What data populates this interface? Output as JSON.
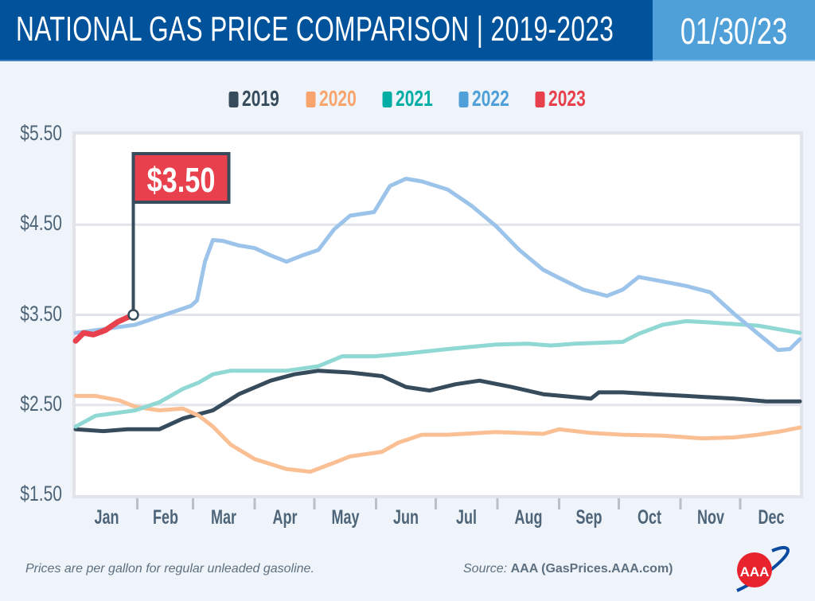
{
  "header": {
    "title": "NATIONAL GAS PRICE COMPARISON | 2019-2023",
    "date": "01/30/23"
  },
  "colors": {
    "header_bg": "#00529b",
    "date_bg": "#4f9fd8",
    "2019": "#364b5c",
    "2020": "#f9a46d",
    "2021": "#00ada4",
    "2022": "#4f9fd8",
    "2023": "#e8404c"
  },
  "footer": {
    "note": "Prices are per gallon for regular unleaded gasoline.",
    "source_label": "Source:",
    "source_value": "AAA (GasPrices.AAA.com)"
  },
  "logo": {
    "text": "AAA"
  },
  "chart_data": {
    "type": "line",
    "ylim": [
      1.5,
      5.5
    ],
    "yticks": [
      "$1.50",
      "$2.50",
      "$3.50",
      "$4.50",
      "$5.50"
    ],
    "ytick_values": [
      1.5,
      2.5,
      3.5,
      4.5,
      5.5
    ],
    "categories": [
      "Jan",
      "Feb",
      "Mar",
      "Apr",
      "May",
      "Jun",
      "Jul",
      "Aug",
      "Sep",
      "Oct",
      "Nov",
      "Dec"
    ],
    "grid": true,
    "legend": "top-center",
    "annotation": {
      "label": "$3.50",
      "date": "Jan 30",
      "value": 3.5
    },
    "series": [
      {
        "name": "2019",
        "color": "#364b5c",
        "display_color": "#364b5c",
        "points": [
          [
            "Jan 1",
            2.23
          ],
          [
            "Jan 15",
            2.21
          ],
          [
            "Jan 27",
            2.23
          ],
          [
            "Feb 12",
            2.23
          ],
          [
            "Feb 24",
            2.35
          ],
          [
            "Mar 11",
            2.44
          ],
          [
            "Mar 24",
            2.62
          ],
          [
            "Apr 9",
            2.77
          ],
          [
            "Apr 21",
            2.84
          ],
          [
            "May 3",
            2.88
          ],
          [
            "May 19",
            2.86
          ],
          [
            "Jun 4",
            2.82
          ],
          [
            "Jun 16",
            2.7
          ],
          [
            "Jun 28",
            2.66
          ],
          [
            "Jul 11",
            2.73
          ],
          [
            "Jul 23",
            2.77
          ],
          [
            "Aug 8",
            2.7
          ],
          [
            "Aug 24",
            2.62
          ],
          [
            "Sep 17",
            2.57
          ],
          [
            "Sep 21",
            2.64
          ],
          [
            "Oct 3",
            2.64
          ],
          [
            "Oct 19",
            2.62
          ],
          [
            "Nov 4",
            2.6
          ],
          [
            "Nov 28",
            2.57
          ],
          [
            "Dec 14",
            2.54
          ],
          [
            "Dec 31",
            2.54
          ]
        ]
      },
      {
        "name": "2020",
        "color": "#f9a46d",
        "display_color": "#fbbf94",
        "points": [
          [
            "Jan 1",
            2.6
          ],
          [
            "Jan 11",
            2.6
          ],
          [
            "Jan 23",
            2.55
          ],
          [
            "Jan 31",
            2.48
          ],
          [
            "Feb 12",
            2.44
          ],
          [
            "Feb 24",
            2.46
          ],
          [
            "Mar 4",
            2.38
          ],
          [
            "Mar 11",
            2.26
          ],
          [
            "Mar 20",
            2.06
          ],
          [
            "Apr 1",
            1.9
          ],
          [
            "Apr 17",
            1.79
          ],
          [
            "Apr 29",
            1.76
          ],
          [
            "May 11",
            1.86
          ],
          [
            "May 19",
            1.93
          ],
          [
            "Jun 4",
            1.98
          ],
          [
            "Jun 12",
            2.08
          ],
          [
            "Jun 24",
            2.17
          ],
          [
            "Jul 7",
            2.17
          ],
          [
            "Jul 31",
            2.2
          ],
          [
            "Aug 24",
            2.18
          ],
          [
            "Sep 1",
            2.23
          ],
          [
            "Sep 17",
            2.19
          ],
          [
            "Oct 3",
            2.17
          ],
          [
            "Oct 23",
            2.16
          ],
          [
            "Nov 12",
            2.13
          ],
          [
            "Nov 28",
            2.14
          ],
          [
            "Dec 10",
            2.17
          ],
          [
            "Dec 22",
            2.21
          ],
          [
            "Dec 31",
            2.25
          ]
        ]
      },
      {
        "name": "2021",
        "color": "#00ada4",
        "display_color": "#8fd8d3",
        "points": [
          [
            "Jan 1",
            2.26
          ],
          [
            "Jan 11",
            2.38
          ],
          [
            "Jan 31",
            2.44
          ],
          [
            "Feb 12",
            2.53
          ],
          [
            "Feb 24",
            2.68
          ],
          [
            "Mar 4",
            2.75
          ],
          [
            "Mar 11",
            2.84
          ],
          [
            "Mar 20",
            2.88
          ],
          [
            "Apr 1",
            2.88
          ],
          [
            "Apr 17",
            2.88
          ],
          [
            "May 3",
            2.93
          ],
          [
            "May 15",
            3.04
          ],
          [
            "May 31",
            3.04
          ],
          [
            "Jun 16",
            3.07
          ],
          [
            "Jul 7",
            3.12
          ],
          [
            "Jul 31",
            3.17
          ],
          [
            "Aug 16",
            3.18
          ],
          [
            "Aug 28",
            3.16
          ],
          [
            "Sep 9",
            3.18
          ],
          [
            "Oct 3",
            3.2
          ],
          [
            "Oct 11",
            3.29
          ],
          [
            "Oct 23",
            3.39
          ],
          [
            "Nov 4",
            3.43
          ],
          [
            "Nov 20",
            3.41
          ],
          [
            "Dec 10",
            3.38
          ],
          [
            "Dec 31",
            3.3
          ]
        ]
      },
      {
        "name": "2022",
        "color": "#4f9fd8",
        "display_color": "#9cc4ea",
        "points": [
          [
            "Jan 1",
            3.3
          ],
          [
            "Jan 31",
            3.39
          ],
          [
            "Feb 12",
            3.48
          ],
          [
            "Feb 28",
            3.6
          ],
          [
            "Mar 3",
            3.66
          ],
          [
            "Mar 7",
            4.09
          ],
          [
            "Mar 11",
            4.33
          ],
          [
            "Mar 16",
            4.32
          ],
          [
            "Mar 24",
            4.27
          ],
          [
            "Apr 1",
            4.24
          ],
          [
            "Apr 9",
            4.16
          ],
          [
            "Apr 17",
            4.09
          ],
          [
            "Apr 25",
            4.16
          ],
          [
            "May 3",
            4.22
          ],
          [
            "May 11",
            4.45
          ],
          [
            "May 19",
            4.6
          ],
          [
            "May 31",
            4.64
          ],
          [
            "Jun 8",
            4.93
          ],
          [
            "Jun 16",
            5.01
          ],
          [
            "Jun 24",
            4.98
          ],
          [
            "Jul 7",
            4.89
          ],
          [
            "Jul 19",
            4.71
          ],
          [
            "Jul 31",
            4.49
          ],
          [
            "Aug 12",
            4.22
          ],
          [
            "Aug 24",
            4.0
          ],
          [
            "Sep 1",
            3.91
          ],
          [
            "Sep 13",
            3.78
          ],
          [
            "Sep 25",
            3.71
          ],
          [
            "Oct 3",
            3.78
          ],
          [
            "Oct 11",
            3.92
          ],
          [
            "Oct 23",
            3.87
          ],
          [
            "Nov 4",
            3.82
          ],
          [
            "Nov 16",
            3.75
          ],
          [
            "Nov 28",
            3.51
          ],
          [
            "Dec 10",
            3.29
          ],
          [
            "Dec 20",
            3.11
          ],
          [
            "Dec 26",
            3.12
          ],
          [
            "Dec 31",
            3.23
          ]
        ]
      },
      {
        "name": "2023",
        "color": "#e8404c",
        "display_color": "#e8404c",
        "points": [
          [
            "Jan 1",
            3.21
          ],
          [
            "Jan 5",
            3.3
          ],
          [
            "Jan 10",
            3.28
          ],
          [
            "Jan 16",
            3.33
          ],
          [
            "Jan 22",
            3.42
          ],
          [
            "Jan 26",
            3.46
          ],
          [
            "Jan 30",
            3.5
          ]
        ]
      }
    ]
  }
}
